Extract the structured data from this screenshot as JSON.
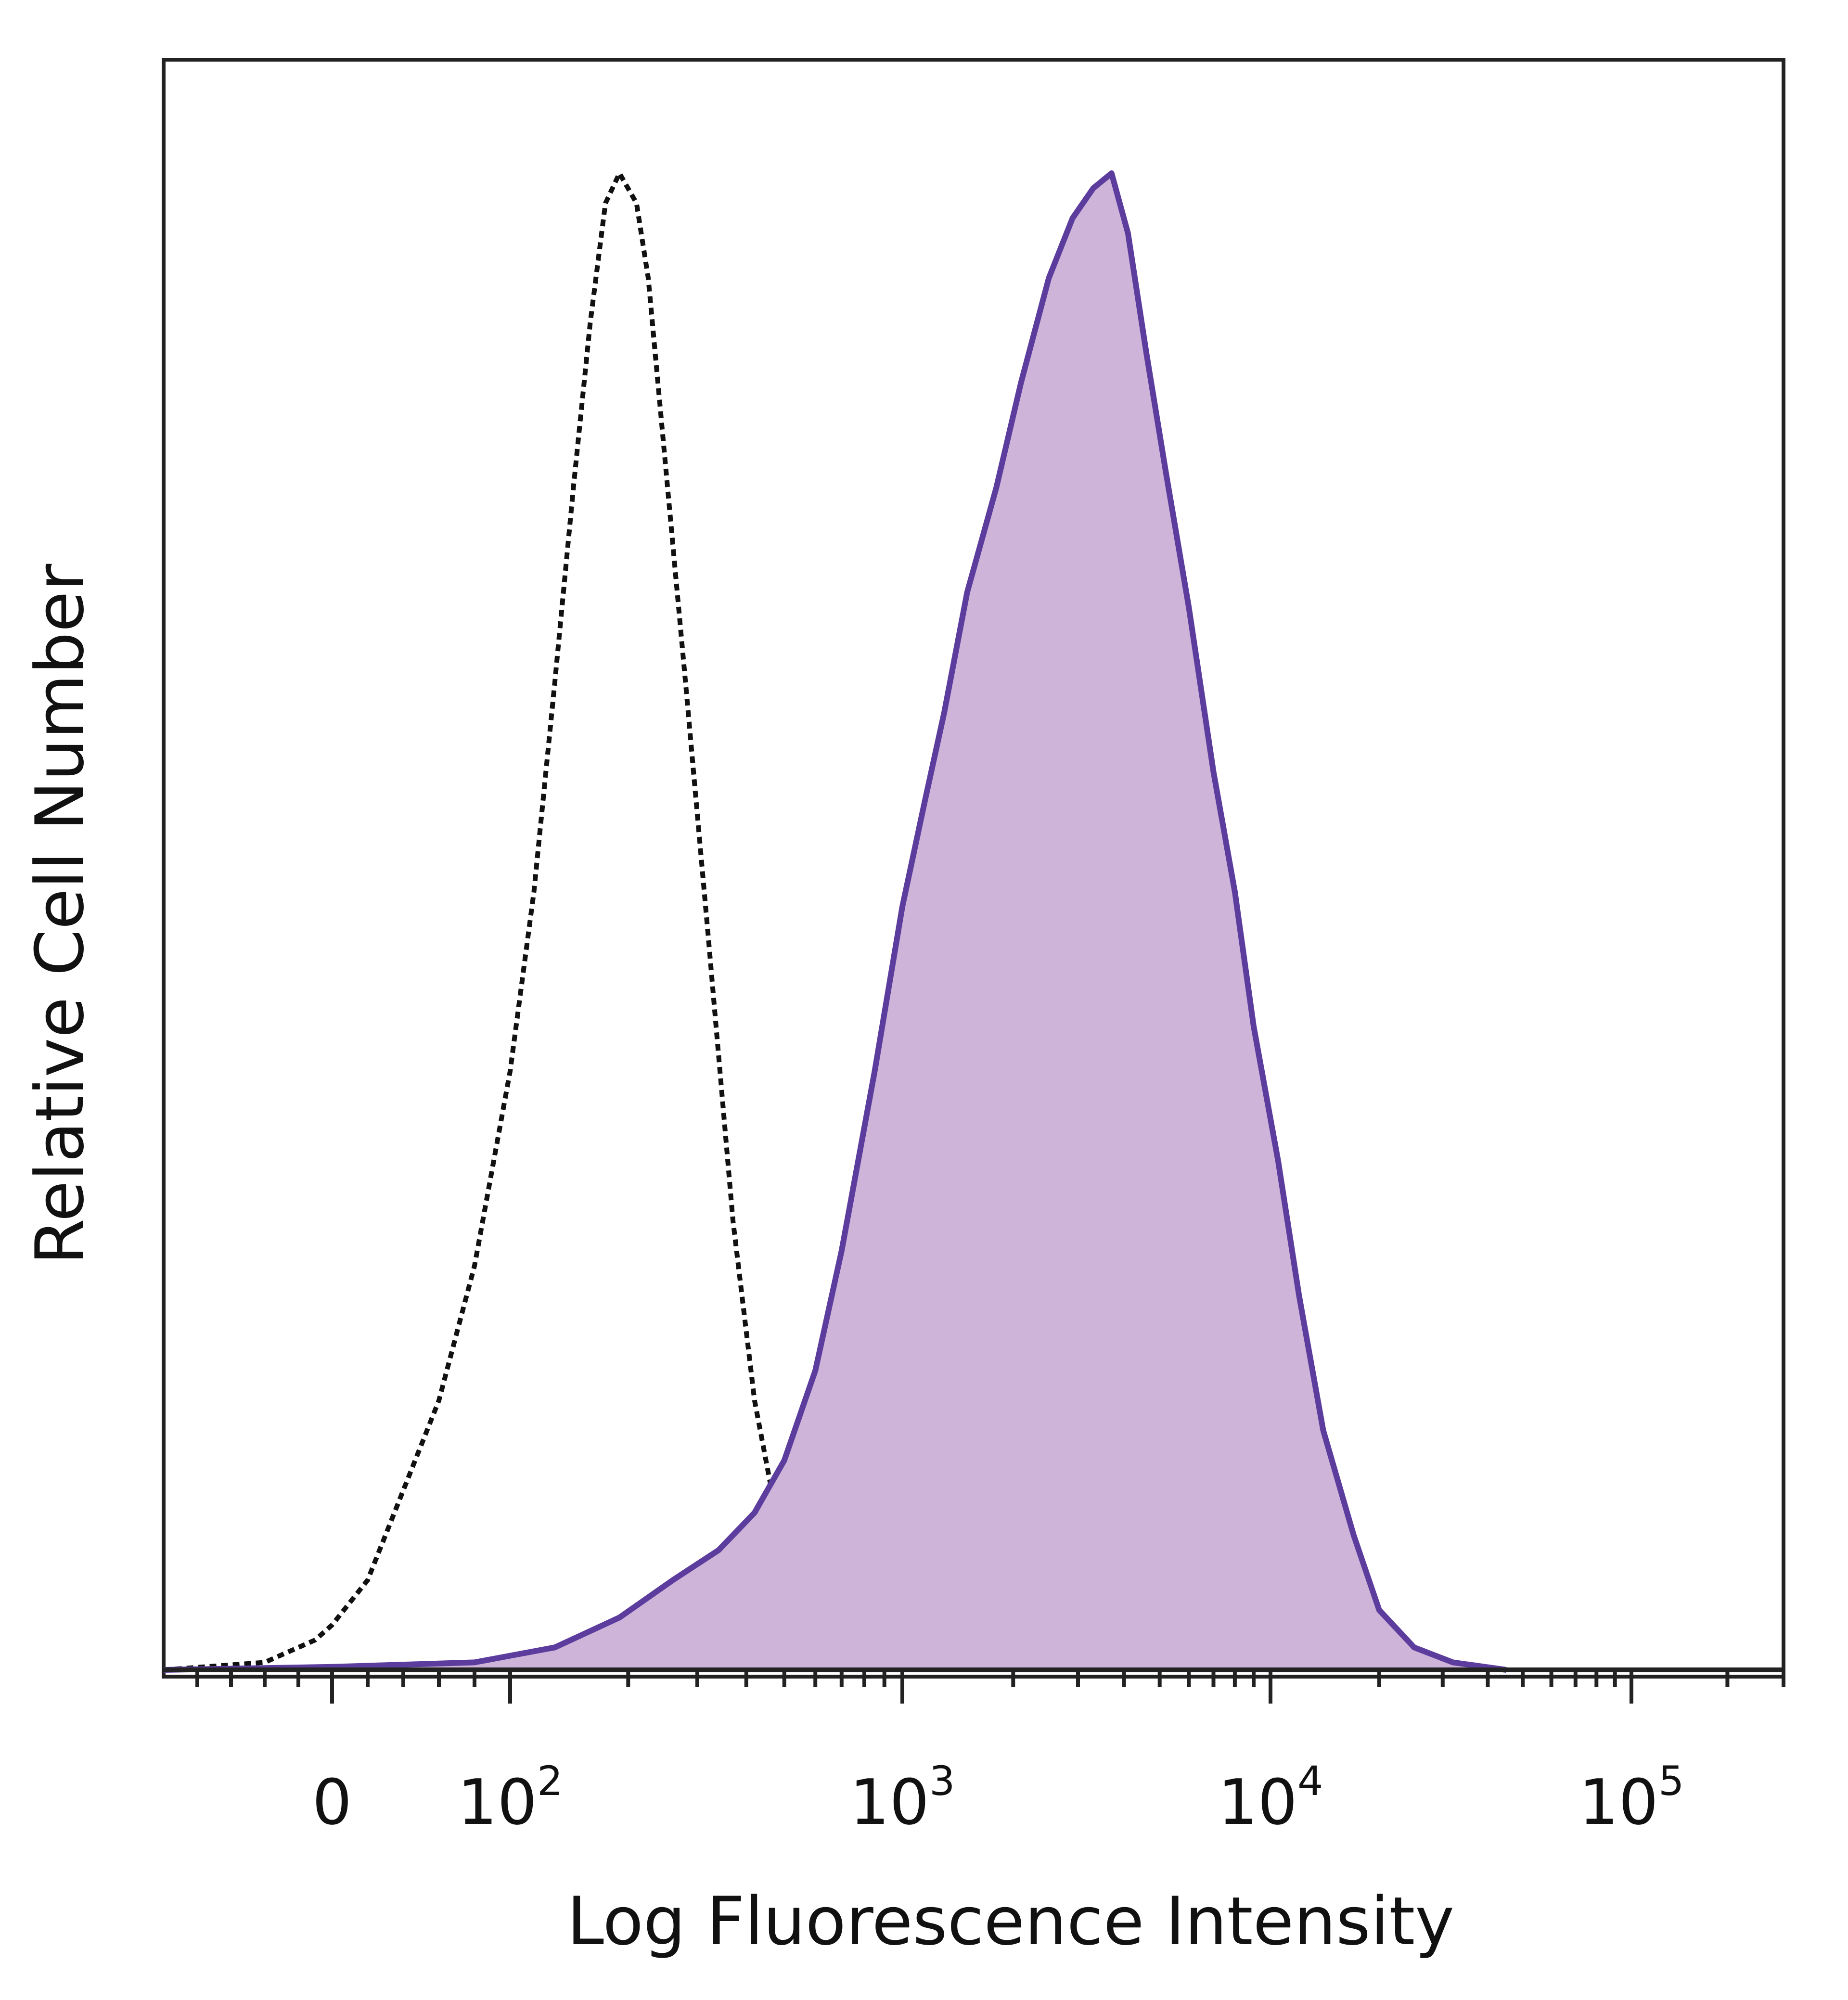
{
  "chart_data": {
    "type": "area",
    "xlabel": "Log Fluorescence Intensity",
    "ylabel": "Relative Cell Number",
    "x_scale": "biexponential",
    "x_range": [
      -100,
      300000
    ],
    "y_range": [
      0,
      105
    ],
    "x_ticks": [
      {
        "value": 0,
        "base": "0",
        "exponent": ""
      },
      {
        "value": 100,
        "base": "10",
        "exponent": "2"
      },
      {
        "value": 1000,
        "base": "10",
        "exponent": "3"
      },
      {
        "value": 10000,
        "base": "10",
        "exponent": "4"
      },
      {
        "value": 100000,
        "base": "10",
        "exponent": "5"
      }
    ],
    "grid": false,
    "legend": "none",
    "series": [
      {
        "style": "dotted-line",
        "color": "#111111",
        "points": [
          [
            -100,
            0
          ],
          [
            -40,
            0.5
          ],
          [
            -10,
            2
          ],
          [
            0,
            3
          ],
          [
            20,
            6
          ],
          [
            40,
            12
          ],
          [
            60,
            18
          ],
          [
            80,
            27
          ],
          [
            100,
            40
          ],
          [
            115,
            52
          ],
          [
            130,
            66
          ],
          [
            145,
            79
          ],
          [
            160,
            90
          ],
          [
            175,
            98
          ],
          [
            190,
            100
          ],
          [
            210,
            98
          ],
          [
            225,
            93
          ],
          [
            250,
            80
          ],
          [
            280,
            66
          ],
          [
            320,
            49
          ],
          [
            370,
            30
          ],
          [
            420,
            18
          ],
          [
            480,
            10
          ],
          [
            560,
            5
          ],
          [
            680,
            2
          ],
          [
            850,
            0.8
          ],
          [
            1200,
            0.2
          ],
          [
            2000,
            0
          ]
        ]
      },
      {
        "style": "filled-area",
        "color": "#5c3d9e",
        "fill": "#cdb4d8",
        "points": [
          [
            -100,
            0
          ],
          [
            0,
            0.2
          ],
          [
            80,
            0.5
          ],
          [
            130,
            1.5
          ],
          [
            190,
            3.5
          ],
          [
            260,
            6
          ],
          [
            340,
            8
          ],
          [
            420,
            10.5
          ],
          [
            500,
            14
          ],
          [
            600,
            20
          ],
          [
            700,
            28
          ],
          [
            850,
            40
          ],
          [
            1000,
            51
          ],
          [
            1150,
            58
          ],
          [
            1300,
            64
          ],
          [
            1500,
            72
          ],
          [
            1800,
            79
          ],
          [
            2100,
            86
          ],
          [
            2500,
            93
          ],
          [
            2900,
            97
          ],
          [
            3300,
            99
          ],
          [
            3700,
            100
          ],
          [
            4100,
            96
          ],
          [
            4600,
            88
          ],
          [
            5200,
            80
          ],
          [
            6000,
            71
          ],
          [
            7000,
            60
          ],
          [
            8000,
            52
          ],
          [
            9000,
            43
          ],
          [
            10500,
            34
          ],
          [
            12000,
            25
          ],
          [
            14000,
            16
          ],
          [
            17000,
            9
          ],
          [
            20000,
            4
          ],
          [
            25000,
            1.5
          ],
          [
            32000,
            0.5
          ],
          [
            45000,
            0
          ]
        ]
      }
    ]
  }
}
